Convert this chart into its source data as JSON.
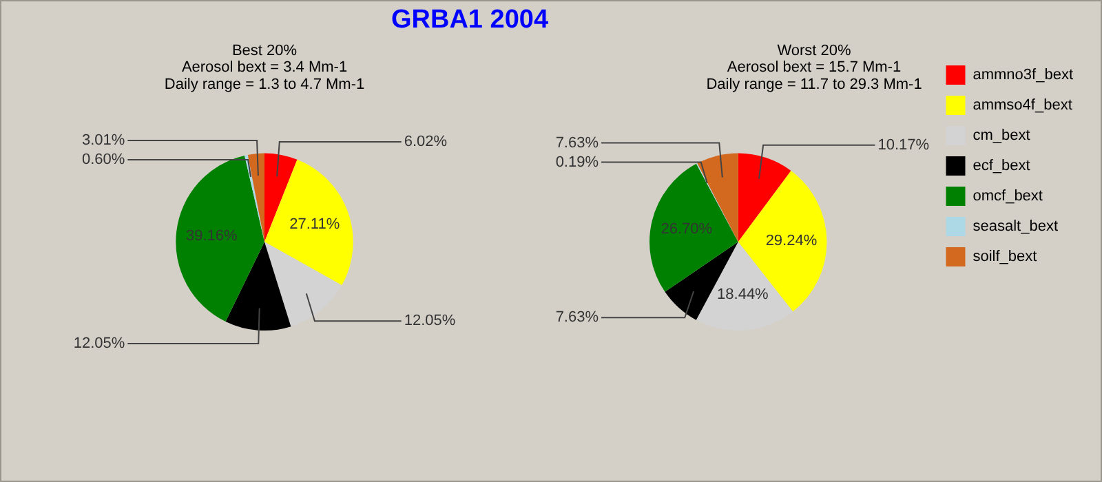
{
  "chart_data": [
    {
      "type": "pie",
      "title": "GRBA1 2004",
      "subtitle": "Best 20%\nAerosol bext = 3.4 Mm-1\nDaily range = 1.3 to 4.7 Mm-1",
      "categories": [
        null,
        null,
        null,
        null,
        null,
        null,
        null
      ],
      "values": [
        6.02,
        27.11,
        12.05,
        12.05,
        39.16,
        0.6,
        3.01
      ],
      "colors": [
        "#ff0000",
        "#ffff00",
        "#d3d3d3",
        "#000000",
        "#008000",
        "#add8e6",
        "#d2691e"
      ],
      "value_labels": [
        "6.02%",
        "27.11%",
        "12.05%",
        "12.05%",
        "39.16%",
        "0.60%",
        "3.01%"
      ],
      "legend": false
    },
    {
      "type": "pie",
      "subtitle": "Worst 20%\nAerosol bext = 15.7 Mm-1\nDaily range = 11.7 to 29.3 Mm-1",
      "categories": [
        "ammno3f_bext",
        "ammso4f_bext",
        "cm_bext",
        "ecf_bext",
        "omcf_bext",
        "seasalt_bext",
        "soilf_bext"
      ],
      "values": [
        10.17,
        29.24,
        18.44,
        7.63,
        26.7,
        0.19,
        7.63
      ],
      "colors": [
        "#ff0000",
        "#ffff00",
        "#d3d3d3",
        "#000000",
        "#008000",
        "#add8e6",
        "#d2691e"
      ],
      "value_labels": [
        "10.17%",
        "29.24%",
        "18.44%",
        "7.63%",
        "26.70%",
        "0.19%",
        "7.63%"
      ],
      "legend": "right"
    }
  ]
}
